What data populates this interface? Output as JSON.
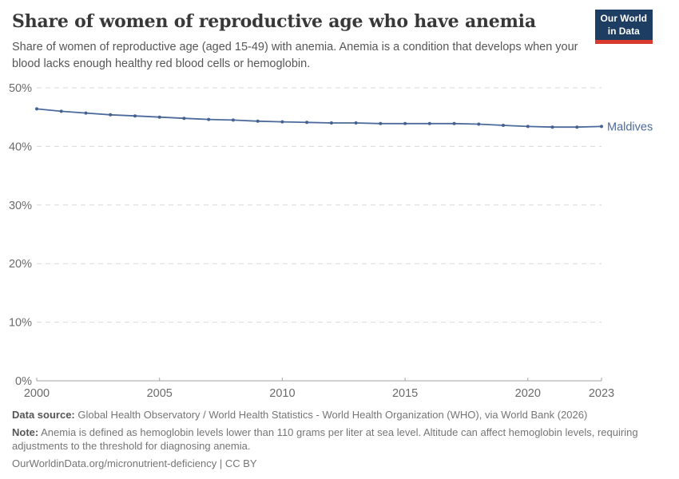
{
  "header": {
    "title": "Share of women of reproductive age who have anemia",
    "subtitle": "Share of women of reproductive age (aged 15-49) with anemia. Anemia is a condition that develops when your blood lacks enough healthy red blood cells or hemoglobin.",
    "logo": {
      "line1": "Our World",
      "line2": "in Data"
    }
  },
  "chart_data": {
    "type": "line",
    "title": "Share of women of reproductive age who have anemia",
    "xlabel": "",
    "ylabel": "",
    "xlim": [
      2000,
      2023
    ],
    "ylim": [
      0,
      50
    ],
    "grid": "horizontal-dashed",
    "x_ticks": [
      2000,
      2005,
      2010,
      2015,
      2020,
      2023
    ],
    "y_tick_values": [
      0,
      10,
      20,
      30,
      40,
      50
    ],
    "y_tick_labels": [
      "0%",
      "10%",
      "20%",
      "30%",
      "40%",
      "50%"
    ],
    "line_color": "#4C6A9C",
    "marker_color": "#44618f",
    "grid_color": "#d9d9d9",
    "axis_color": "#a3a3a3",
    "tick_label_color": "#6b6b6b",
    "series": [
      {
        "name": "Maldives",
        "x": [
          2000,
          2001,
          2002,
          2003,
          2004,
          2005,
          2006,
          2007,
          2008,
          2009,
          2010,
          2011,
          2012,
          2013,
          2014,
          2015,
          2016,
          2017,
          2018,
          2019,
          2020,
          2021,
          2022,
          2023
        ],
        "values": [
          46.4,
          46.0,
          45.7,
          45.4,
          45.2,
          45.0,
          44.8,
          44.6,
          44.5,
          44.3,
          44.2,
          44.1,
          44.0,
          44.0,
          43.9,
          43.9,
          43.9,
          43.9,
          43.8,
          43.6,
          43.4,
          43.3,
          43.3,
          43.4
        ]
      }
    ],
    "entity_label": "Maldives"
  },
  "footer": {
    "data_source_label": "Data source:",
    "data_source_text": " Global Health Observatory / World Health Statistics - World Health Organization (WHO), via World Bank (2026)",
    "note_label": "Note:",
    "note_text": " Anemia is defined as hemoglobin levels lower than 110 grams per liter at sea level. Altitude can affect hemoglobin levels, requiring adjustments to the threshold for diagnosing anemia.",
    "citation": "OurWorldinData.org/micronutrient-deficiency | CC BY"
  }
}
